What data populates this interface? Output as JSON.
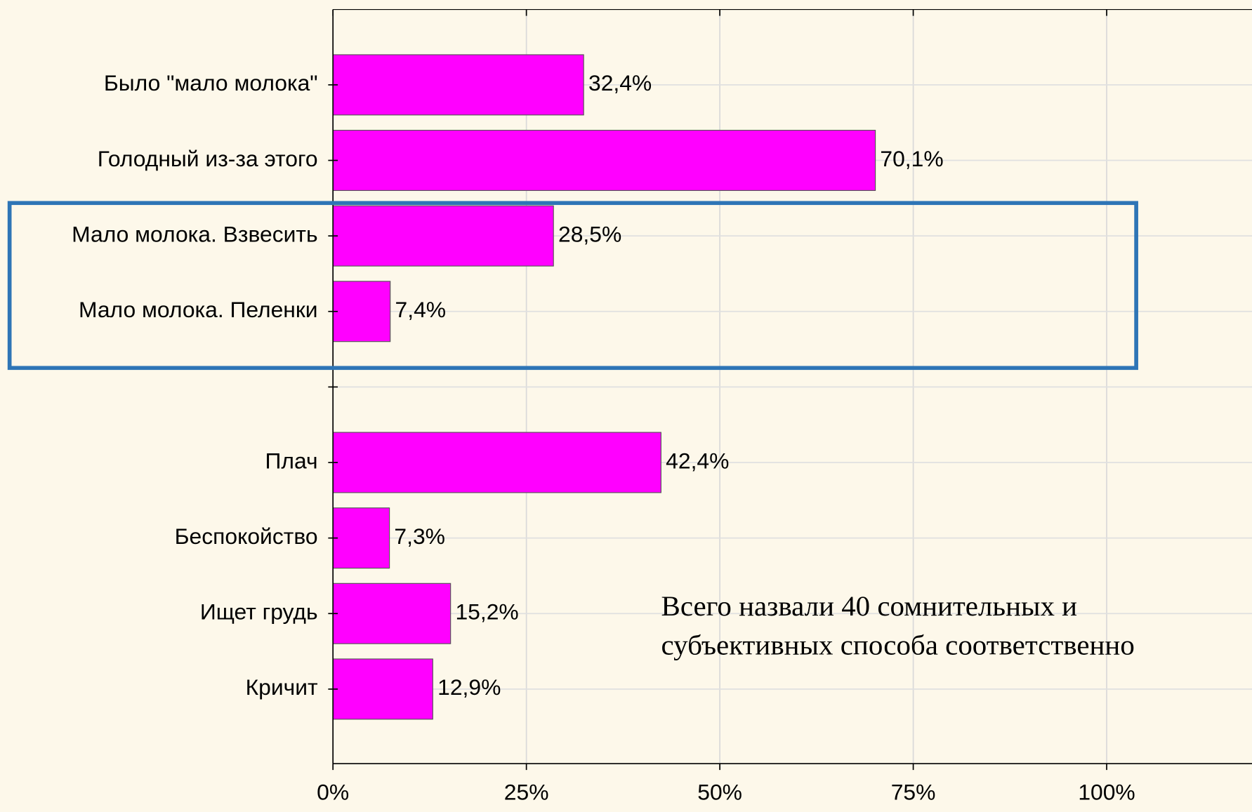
{
  "chart_data": {
    "type": "bar",
    "orientation": "horizontal",
    "categories": [
      "Было \"мало молока\"",
      "Голодный из-за этого",
      "Мало молока. Взвесить",
      "Мало молока. Пеленки",
      null,
      "Плач",
      "Беспокойство",
      "Ищет грудь",
      "Кричит"
    ],
    "values": [
      32.4,
      70.1,
      28.5,
      7.4,
      null,
      42.4,
      7.3,
      15.2,
      12.9
    ],
    "value_labels": [
      "32,4%",
      "70,1%",
      "28,5%",
      "7,4%",
      null,
      "42,4%",
      "7,3%",
      "15,2%",
      "12,9%"
    ],
    "color": "#ff00ff",
    "xlim": [
      0,
      119
    ],
    "xticks": [
      {
        "value": 0,
        "label": "0%"
      },
      {
        "value": 25,
        "label": "25%"
      },
      {
        "value": 50,
        "label": "50%"
      },
      {
        "value": 75,
        "label": "75%"
      },
      {
        "value": 100,
        "label": "100%"
      }
    ],
    "grid": true,
    "annotation": [
      "Всего назвали 40 сомнительных и",
      "субъективных способа соответственно"
    ]
  }
}
